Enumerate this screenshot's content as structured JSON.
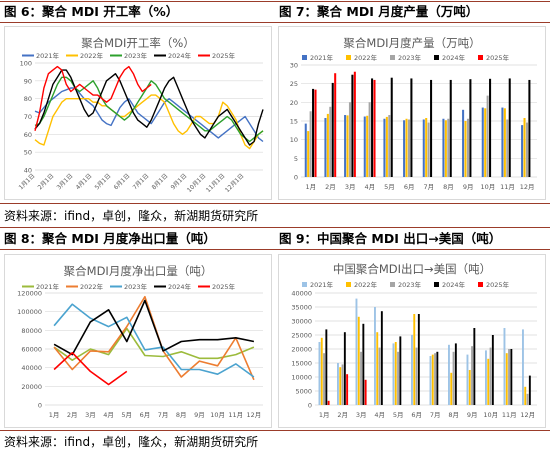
{
  "figures": {
    "fig6_label": "图 6：聚合 MDI 开工率（%）",
    "fig7_label": "图 7：聚合 MDI 月度产量（万吨）",
    "fig8_label": "图 8：聚合 MDI 月度净出口量（吨）",
    "fig9_label": "图 9：中国聚合 MDI 出口→美国（吨）"
  },
  "source_text_1": "资料来源：ifind，卓创，隆众，新湖期货研究所",
  "source_text_2": "资料来源：ifind，卓创，隆众，新湖期货研究所",
  "colors": {
    "rule": "#9b3c2a",
    "s2021": "#4472c4",
    "s2022": "#ffc000",
    "s2023": "#a5a5a5",
    "s2024": "#000000",
    "s2025": "#ff0000",
    "line2021": "#9cbb3c",
    "line2022": "#ed7d31",
    "line2023": "#4ba3cf",
    "line2023b": "#2ca02c",
    "ex2021": "#9dc3e6"
  },
  "chart_data": [
    {
      "id": "fig6",
      "type": "line",
      "title": "聚合MDI开工率（%）",
      "ylim": [
        40,
        100
      ],
      "yticks": [
        "40",
        "50",
        "60",
        "70",
        "80",
        "90",
        "100"
      ],
      "xticks": [
        "1月1日",
        "2月1日",
        "3月1日",
        "4月1日",
        "5月1日",
        "6月1日",
        "7月1日",
        "8月1日",
        "9月1日",
        "10月1日",
        "11月1日",
        "12月1日"
      ],
      "legend": [
        "2021年",
        "2022年",
        "2023年",
        "2024年",
        "2025年"
      ],
      "grid": true,
      "series": [
        {
          "name": "2021年",
          "color": "#4472c4",
          "values": [
            73,
            72,
            75,
            78,
            80,
            82,
            84,
            85,
            86,
            86,
            83,
            80,
            78,
            76,
            72,
            68,
            66,
            65,
            70,
            75,
            78,
            80,
            76,
            72,
            70,
            68,
            66,
            70,
            74,
            78,
            80,
            78,
            76,
            74,
            72,
            70,
            68,
            66,
            64,
            62,
            60,
            58,
            60,
            62,
            64,
            66,
            68,
            70,
            66,
            62,
            58,
            56
          ]
        },
        {
          "name": "2022年",
          "color": "#ffc000",
          "values": [
            57,
            55,
            54,
            62,
            70,
            74,
            78,
            80,
            80,
            80,
            80,
            80,
            80,
            78,
            78,
            76,
            76,
            74,
            72,
            70,
            70,
            72,
            74,
            76,
            78,
            80,
            82,
            82,
            80,
            78,
            72,
            66,
            62,
            60,
            62,
            66,
            70,
            70,
            68,
            66,
            66,
            70,
            78,
            76,
            72,
            68,
            60,
            54,
            52,
            56,
            60,
            62
          ]
        },
        {
          "name": "2023年",
          "color": "#2ca02c",
          "values": [
            65,
            66,
            70,
            76,
            82,
            88,
            92,
            92,
            90,
            86,
            84,
            86,
            88,
            90,
            86,
            80,
            76,
            74,
            72,
            70,
            68,
            70,
            74,
            78,
            82,
            86,
            90,
            88,
            84,
            80,
            78,
            76,
            74,
            72,
            70,
            68,
            66,
            64,
            62,
            62,
            64,
            66,
            68,
            70,
            68,
            64,
            60,
            58,
            56,
            58,
            60,
            62
          ]
        },
        {
          "name": "2024年",
          "color": "#000000",
          "values": [
            63,
            66,
            72,
            80,
            88,
            92,
            96,
            96,
            92,
            86,
            80,
            74,
            70,
            72,
            78,
            84,
            90,
            92,
            94,
            90,
            84,
            78,
            72,
            68,
            66,
            64,
            68,
            74,
            80,
            86,
            90,
            92,
            86,
            80,
            74,
            68,
            64,
            60,
            58,
            62,
            66,
            70,
            72,
            74,
            70,
            66,
            62,
            58,
            54,
            56,
            66,
            74
          ]
        },
        {
          "name": "2025年",
          "color": "#ff0000",
          "values": [
            62,
            72,
            86,
            94,
            96,
            98,
            96,
            88,
            84,
            86,
            88,
            86,
            84,
            82,
            82,
            80,
            78,
            80,
            86,
            92,
            96,
            98,
            94,
            88,
            84,
            86,
            88
          ]
        }
      ]
    },
    {
      "id": "fig7",
      "type": "bar",
      "title": "聚合MDI月度产量（万吨）",
      "ylim": [
        0,
        30
      ],
      "yticks": [
        "0",
        "5",
        "10",
        "15",
        "20",
        "25",
        "30"
      ],
      "categories": [
        "1月",
        "2月",
        "3月",
        "4月",
        "5月",
        "6月",
        "7月",
        "8月",
        "9月",
        "10月",
        "11月",
        "12月"
      ],
      "legend": [
        "2021年",
        "2022年",
        "2023年",
        "2024年",
        "2025年"
      ],
      "grid": true,
      "series": [
        {
          "name": "2021年",
          "color": "#4472c4",
          "values": [
            14.3,
            15.8,
            16.6,
            16.2,
            15.6,
            15.2,
            15.4,
            15.6,
            18.0,
            18.6,
            18.6,
            13.9
          ]
        },
        {
          "name": "2022年",
          "color": "#ffc000",
          "values": [
            12.3,
            16.9,
            16.5,
            16.4,
            16.1,
            15.6,
            15.8,
            15.2,
            15.0,
            18.4,
            18.4,
            15.8
          ]
        },
        {
          "name": "2023年",
          "color": "#a5a5a5",
          "values": [
            17.6,
            18.8,
            20.0,
            20.0,
            16.6,
            15.4,
            14.6,
            15.6,
            15.6,
            21.8,
            15.4,
            14.6
          ]
        },
        {
          "name": "2024年",
          "color": "#000000",
          "values": [
            23.6,
            25.2,
            27.4,
            26.4,
            26.6,
            26.4,
            26.0,
            26.0,
            26.2,
            26.3,
            26.4,
            26.0
          ]
        },
        {
          "name": "2025年",
          "color": "#ff0000",
          "values": [
            23.4,
            27.8,
            28.2,
            26.0,
            null,
            null,
            null,
            null,
            null,
            null,
            null,
            null
          ]
        }
      ]
    },
    {
      "id": "fig8",
      "type": "line",
      "title": "聚合MDI月度净出口量（吨）",
      "ylim": [
        0,
        120000
      ],
      "yticks": [
        "0",
        "20000",
        "40000",
        "60000",
        "80000",
        "100000",
        "120000"
      ],
      "categories": [
        "1月",
        "2月",
        "3月",
        "4月",
        "5月",
        "6月",
        "7月",
        "8月",
        "9月",
        "10月",
        "11月",
        "12月"
      ],
      "legend": [
        "2021年",
        "2022年",
        "2023年",
        "2024年",
        "2025年"
      ],
      "grid": true,
      "series": [
        {
          "name": "2021年",
          "color": "#9cbb3c",
          "values": [
            62000,
            48000,
            60000,
            54000,
            82000,
            53000,
            52000,
            57000,
            50000,
            50000,
            54000,
            62000
          ]
        },
        {
          "name": "2022年",
          "color": "#ed7d31",
          "values": [
            62000,
            38000,
            58000,
            57000,
            84000,
            116000,
            58000,
            30000,
            47000,
            42000,
            72000,
            27000
          ]
        },
        {
          "name": "2023年",
          "color": "#4ba3cf",
          "values": [
            85000,
            108000,
            93000,
            84000,
            94000,
            59000,
            62000,
            38000,
            38000,
            33000,
            44000,
            30000
          ]
        },
        {
          "name": "2024年",
          "color": "#000000",
          "values": [
            65000,
            54000,
            89000,
            102000,
            68000,
            112000,
            58000,
            68000,
            70000,
            70000,
            72000,
            68000
          ]
        },
        {
          "name": "2025年",
          "color": "#ff0000",
          "values": [
            38000,
            56000,
            36000,
            22000,
            36000,
            null,
            null,
            null,
            null,
            null,
            null,
            null
          ]
        }
      ]
    },
    {
      "id": "fig9",
      "type": "bar",
      "title": "中国聚合MDI出口→美国（吨）",
      "ylim": [
        0,
        40000
      ],
      "yticks": [
        "0",
        "5000",
        "10000",
        "15000",
        "20000",
        "25000",
        "30000",
        "35000",
        "40000"
      ],
      "categories": [
        "1月",
        "2月",
        "3月",
        "4月",
        "5月",
        "6月",
        "7月",
        "8月",
        "9月",
        "10月",
        "11月",
        "12月"
      ],
      "legend": [
        "2021年",
        "2022年",
        "2023年",
        "2024年",
        "2025年"
      ],
      "grid": true,
      "series": [
        {
          "name": "2021年",
          "color": "#9dc3e6",
          "values": [
            22500,
            15000,
            38000,
            35000,
            22000,
            25000,
            17500,
            21500,
            18000,
            19500,
            27500,
            27000
          ]
        },
        {
          "name": "2022年",
          "color": "#ffc000",
          "values": [
            24000,
            13500,
            31500,
            26000,
            22500,
            32500,
            18000,
            11500,
            12500,
            16500,
            18500,
            6500
          ]
        },
        {
          "name": "2023年",
          "color": "#a5a5a5",
          "values": [
            18500,
            14500,
            19000,
            20500,
            19000,
            20500,
            18500,
            19000,
            21000,
            20500,
            20000,
            4000
          ]
        },
        {
          "name": "2024年",
          "color": "#000000",
          "values": [
            27000,
            26000,
            29000,
            33500,
            24500,
            32500,
            19000,
            22000,
            27500,
            25000,
            20000,
            10500
          ]
        },
        {
          "name": "2025年",
          "color": "#ff0000",
          "values": [
            1500,
            11000,
            9000,
            null,
            null,
            null,
            null,
            null,
            null,
            null,
            null,
            null
          ]
        }
      ]
    }
  ]
}
